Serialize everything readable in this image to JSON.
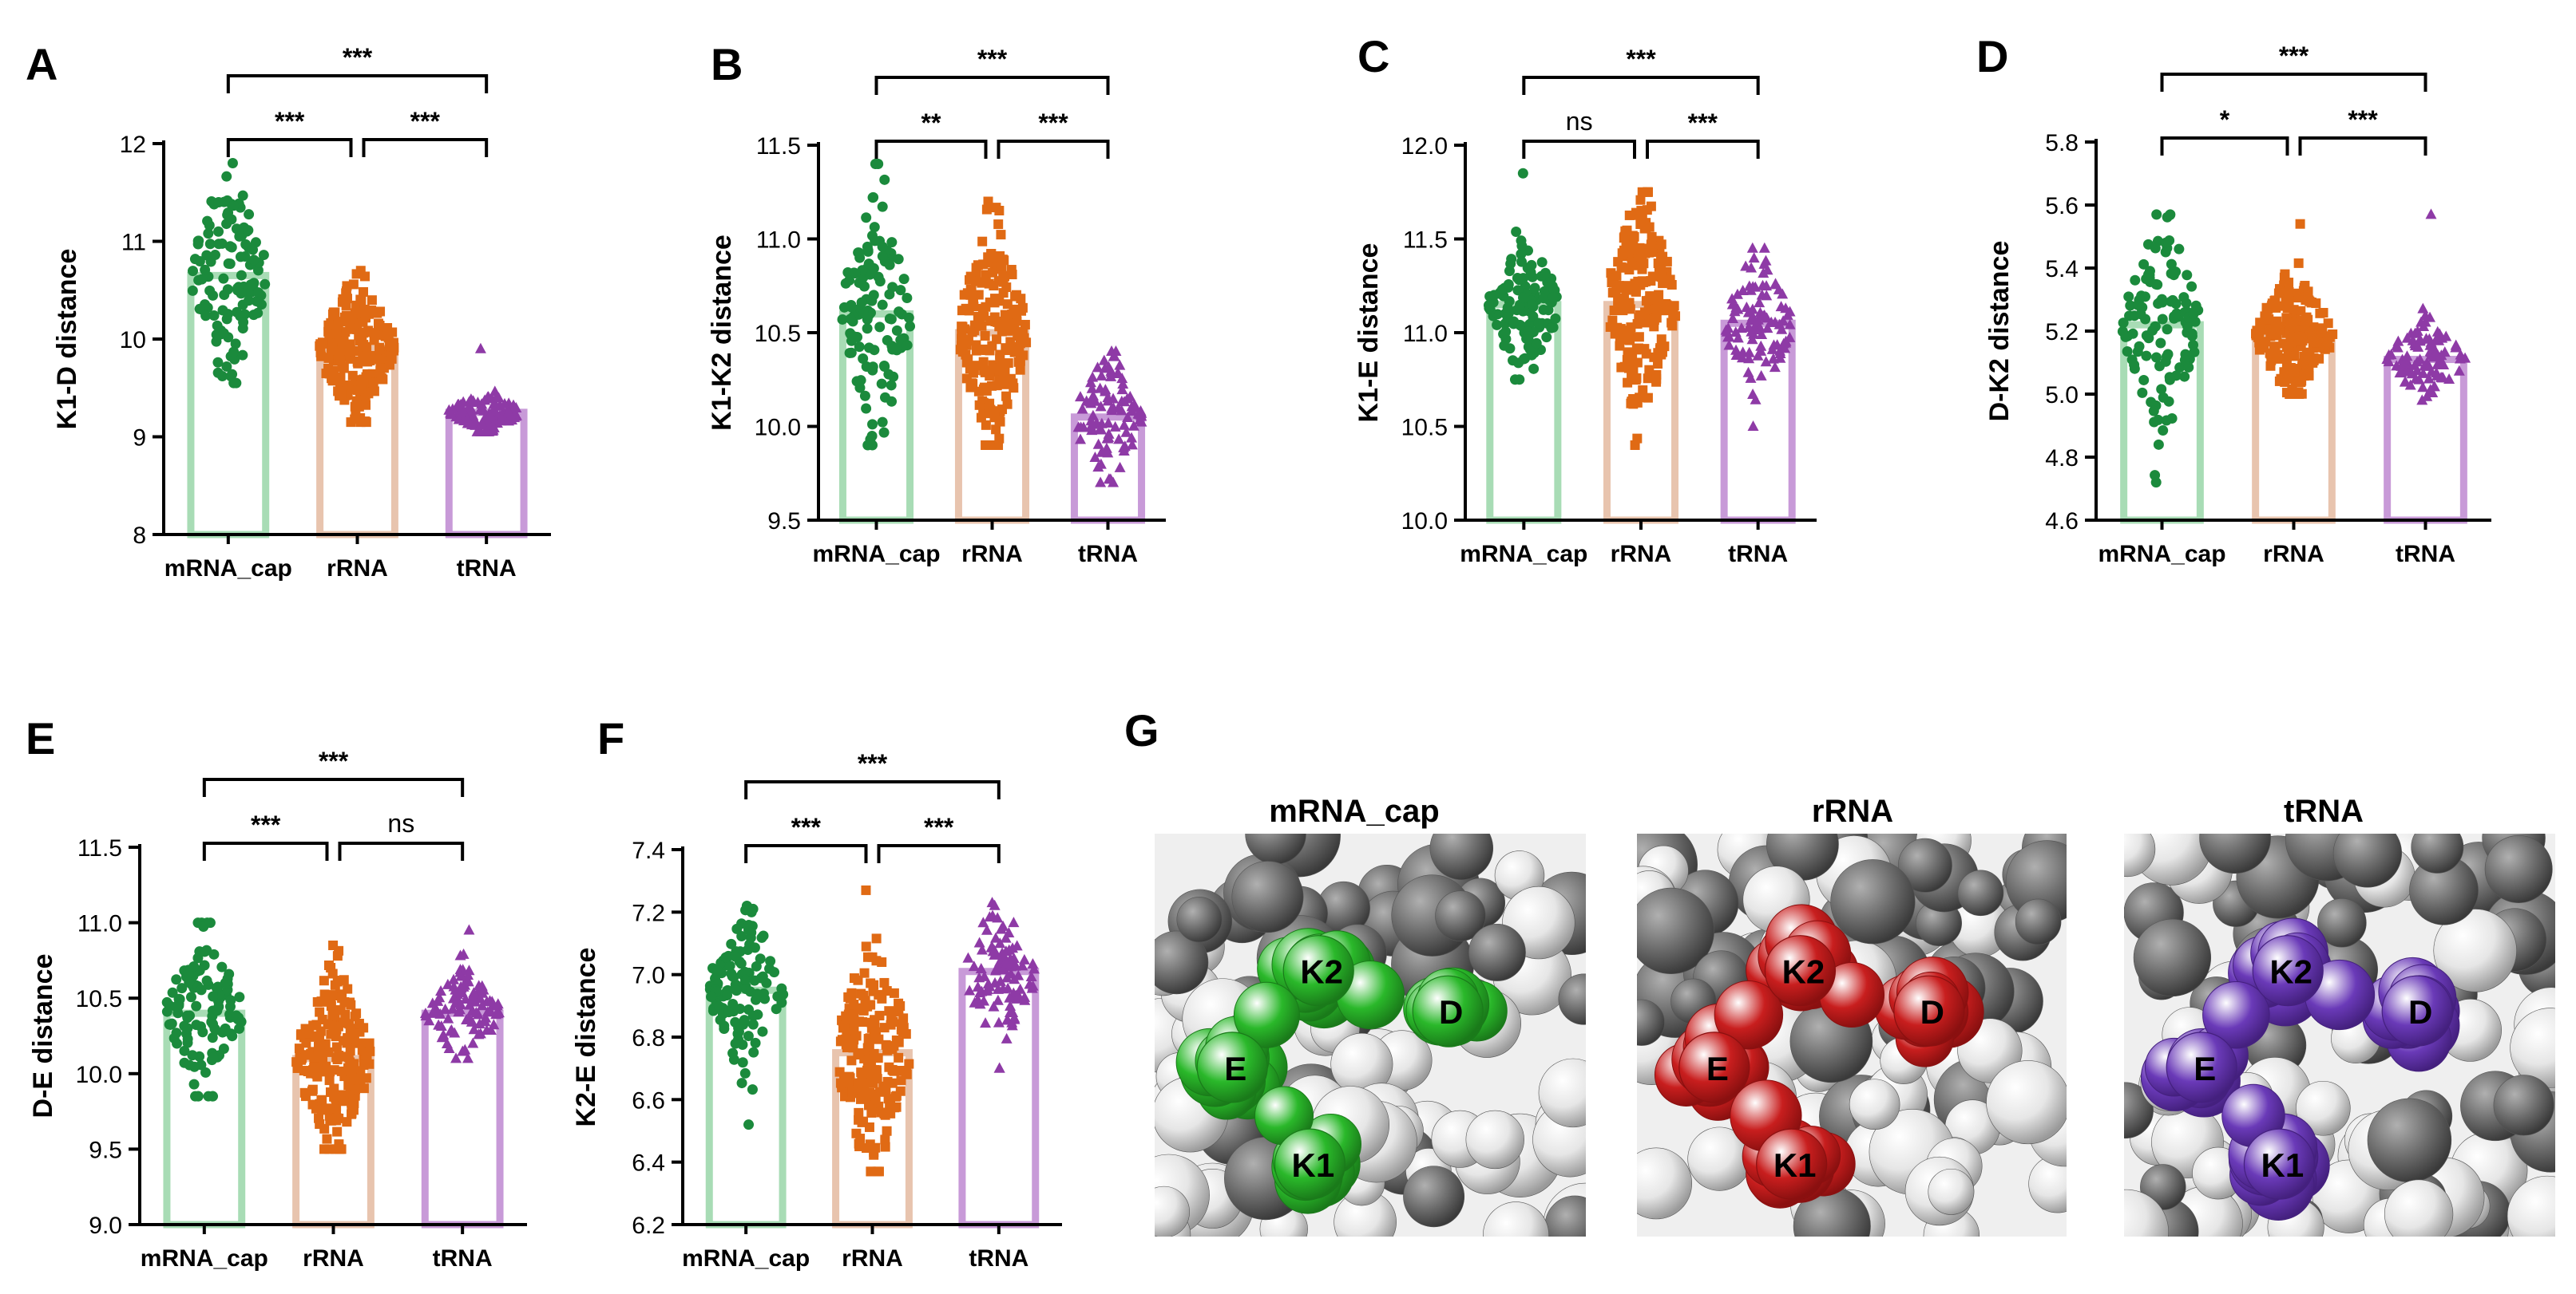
{
  "colors": {
    "mRNA_cap": {
      "point": "#1b8a3c",
      "bar": "#a8dcb5"
    },
    "rRNA": {
      "point": "#e06a14",
      "bar": "#e8c4ae"
    },
    "tRNA": {
      "point": "#8e3aa6",
      "bar": "#c89ad8"
    }
  },
  "chart_data": [
    {
      "panel": "A",
      "type": "bar",
      "ylabel": "K1-D distance",
      "categories": [
        "mRNA_cap",
        "rRNA",
        "tRNA"
      ],
      "ylim": [
        8,
        12
      ],
      "yticks": [
        8,
        9,
        10,
        11,
        12
      ],
      "yticklabels": [
        "8",
        "9",
        "10",
        "11",
        "12"
      ],
      "series": [
        {
          "name": "mRNA_cap",
          "mean": 10.65,
          "min": 9.55,
          "max": 11.8,
          "n": 120,
          "marker": "circle"
        },
        {
          "name": "rRNA",
          "mean": 9.9,
          "min": 9.15,
          "max": 10.7,
          "n": 200,
          "marker": "square"
        },
        {
          "name": "tRNA",
          "mean": 9.25,
          "min": 9.05,
          "max": 9.9,
          "n": 100,
          "marker": "triangle"
        }
      ],
      "significance": [
        {
          "from": 0,
          "to": 2,
          "label": "***",
          "level": 2
        },
        {
          "from": 0,
          "to": 1,
          "label": "***",
          "level": 1
        },
        {
          "from": 1,
          "to": 2,
          "label": "***",
          "level": 1
        }
      ]
    },
    {
      "panel": "B",
      "type": "bar",
      "ylabel": "K1-K2 distance",
      "categories": [
        "mRNA_cap",
        "rRNA",
        "tRNA"
      ],
      "ylim": [
        9.5,
        11.5
      ],
      "yticks": [
        9.5,
        10.0,
        10.5,
        11.0,
        11.5
      ],
      "yticklabels": [
        "9.5",
        "10.0",
        "10.5",
        "11.0",
        "11.5"
      ],
      "series": [
        {
          "name": "mRNA_cap",
          "mean": 10.6,
          "min": 9.9,
          "max": 11.4,
          "n": 120,
          "marker": "circle"
        },
        {
          "name": "rRNA",
          "mean": 10.5,
          "min": 9.9,
          "max": 11.2,
          "n": 200,
          "marker": "square"
        },
        {
          "name": "tRNA",
          "mean": 10.05,
          "min": 9.7,
          "max": 10.4,
          "n": 100,
          "marker": "triangle"
        }
      ],
      "significance": [
        {
          "from": 0,
          "to": 2,
          "label": "***",
          "level": 2
        },
        {
          "from": 0,
          "to": 1,
          "label": "**",
          "level": 1
        },
        {
          "from": 1,
          "to": 2,
          "label": "***",
          "level": 1
        }
      ]
    },
    {
      "panel": "C",
      "type": "bar",
      "ylabel": "K1-E distance",
      "categories": [
        "mRNA_cap",
        "rRNA",
        "tRNA"
      ],
      "ylim": [
        10.0,
        12.0
      ],
      "yticks": [
        10.0,
        10.5,
        11.0,
        11.5,
        12.0
      ],
      "yticklabels": [
        "10.0",
        "10.5",
        "11.0",
        "11.5",
        "12.0"
      ],
      "series": [
        {
          "name": "mRNA_cap",
          "mean": 11.15,
          "min": 10.75,
          "max": 11.85,
          "n": 120,
          "marker": "circle"
        },
        {
          "name": "rRNA",
          "mean": 11.15,
          "min": 10.4,
          "max": 11.75,
          "n": 200,
          "marker": "square"
        },
        {
          "name": "tRNA",
          "mean": 11.05,
          "min": 10.5,
          "max": 11.45,
          "n": 100,
          "marker": "triangle"
        }
      ],
      "significance": [
        {
          "from": 0,
          "to": 2,
          "label": "***",
          "level": 2
        },
        {
          "from": 0,
          "to": 1,
          "label": "ns",
          "level": 1
        },
        {
          "from": 1,
          "to": 2,
          "label": "***",
          "level": 1
        }
      ]
    },
    {
      "panel": "D",
      "type": "bar",
      "ylabel": "D-K2 distance",
      "categories": [
        "mRNA_cap",
        "rRNA",
        "tRNA"
      ],
      "ylim": [
        4.6,
        5.8
      ],
      "yticks": [
        4.6,
        4.8,
        5.0,
        5.2,
        5.4,
        5.6,
        5.8
      ],
      "yticklabels": [
        "4.6",
        "4.8",
        "5.0",
        "5.2",
        "5.4",
        "5.6",
        "5.8"
      ],
      "series": [
        {
          "name": "mRNA_cap",
          "mean": 5.22,
          "min": 4.72,
          "max": 5.57,
          "n": 120,
          "marker": "circle"
        },
        {
          "name": "rRNA",
          "mean": 5.19,
          "min": 5.0,
          "max": 5.54,
          "n": 200,
          "marker": "square"
        },
        {
          "name": "tRNA",
          "mean": 5.11,
          "min": 4.98,
          "max": 5.57,
          "n": 100,
          "marker": "triangle"
        }
      ],
      "significance": [
        {
          "from": 0,
          "to": 2,
          "label": "***",
          "level": 2
        },
        {
          "from": 0,
          "to": 1,
          "label": "*",
          "level": 1
        },
        {
          "from": 1,
          "to": 2,
          "label": "***",
          "level": 1
        }
      ]
    },
    {
      "panel": "E",
      "type": "bar",
      "ylabel": "D-E distance",
      "categories": [
        "mRNA_cap",
        "rRNA",
        "tRNA"
      ],
      "ylim": [
        9.0,
        11.5
      ],
      "yticks": [
        9.0,
        9.5,
        10.0,
        10.5,
        11.0,
        11.5
      ],
      "yticklabels": [
        "9.0",
        "9.5",
        "10.0",
        "10.5",
        "11.0",
        "11.5"
      ],
      "series": [
        {
          "name": "mRNA_cap",
          "mean": 10.4,
          "min": 9.85,
          "max": 11.0,
          "n": 120,
          "marker": "circle"
        },
        {
          "name": "rRNA",
          "mean": 10.1,
          "min": 9.5,
          "max": 10.85,
          "n": 200,
          "marker": "square"
        },
        {
          "name": "tRNA",
          "mean": 10.4,
          "min": 10.1,
          "max": 10.95,
          "n": 100,
          "marker": "triangle"
        }
      ],
      "significance": [
        {
          "from": 0,
          "to": 2,
          "label": "***",
          "level": 2
        },
        {
          "from": 0,
          "to": 1,
          "label": "***",
          "level": 1
        },
        {
          "from": 1,
          "to": 2,
          "label": "ns",
          "level": 1
        }
      ]
    },
    {
      "panel": "F",
      "type": "bar",
      "ylabel": "K2-E distance",
      "categories": [
        "mRNA_cap",
        "rRNA",
        "tRNA"
      ],
      "ylim": [
        6.2,
        7.4
      ],
      "yticks": [
        6.2,
        6.4,
        6.6,
        6.8,
        7.0,
        7.2,
        7.4
      ],
      "yticklabels": [
        "6.2",
        "6.4",
        "6.6",
        "6.8",
        "7.0",
        "7.2",
        "7.4"
      ],
      "series": [
        {
          "name": "mRNA_cap",
          "mean": 6.95,
          "min": 6.52,
          "max": 7.22,
          "n": 120,
          "marker": "circle"
        },
        {
          "name": "rRNA",
          "mean": 6.75,
          "min": 6.37,
          "max": 7.27,
          "n": 200,
          "marker": "square"
        },
        {
          "name": "tRNA",
          "mean": 7.01,
          "min": 6.7,
          "max": 7.23,
          "n": 100,
          "marker": "triangle"
        }
      ],
      "significance": [
        {
          "from": 0,
          "to": 2,
          "label": "***",
          "level": 2
        },
        {
          "from": 0,
          "to": 1,
          "label": "***",
          "level": 1
        },
        {
          "from": 1,
          "to": 2,
          "label": "***",
          "level": 1
        }
      ]
    }
  ],
  "panel_g": {
    "letter": "G",
    "structures": [
      {
        "title": "mRNA_cap",
        "color": "#2ab82a",
        "dark": "#1a7a1a",
        "labels": {
          "K2": "K2",
          "D": "D",
          "E": "E",
          "K1": "K1"
        }
      },
      {
        "title": "rRNA",
        "color": "#c81e1e",
        "dark": "#8a1010",
        "labels": {
          "K2": "K2",
          "D": "D",
          "E": "E",
          "K1": "K1"
        }
      },
      {
        "title": "tRNA",
        "color": "#6a3ab8",
        "dark": "#44207e",
        "labels": {
          "K2": "K2",
          "D": "D",
          "E": "E",
          "K1": "K1"
        }
      }
    ]
  }
}
